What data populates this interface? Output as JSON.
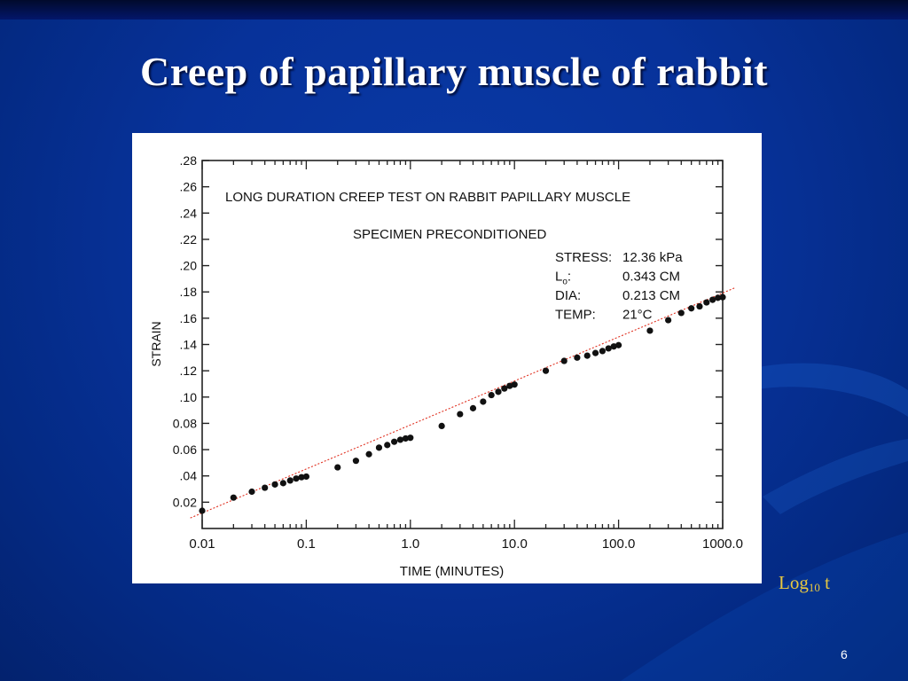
{
  "slide": {
    "title": "Creep of papillary muscle of rabbit",
    "log_label_base": "Log",
    "log_label_sub": "10",
    "log_label_var": "t",
    "page_number": "6"
  },
  "colors": {
    "background": "#07329a",
    "title_text": "#ffffff",
    "log_label": "#e8c840",
    "trend_line": "#e03020",
    "points": "#111111"
  },
  "chart_data": {
    "type": "scatter",
    "title": "LONG DURATION CREEP TEST ON RABBIT PAPILLARY MUSCLE",
    "subtitle": "SPECIMEN PRECONDITIONED",
    "xlabel": "TIME (MINUTES)",
    "ylabel": "STRAIN",
    "x_scale": "log10",
    "xlim": [
      0.01,
      1000
    ],
    "ylim": [
      0,
      0.28
    ],
    "x_ticks": [
      {
        "value": 0.01,
        "label": "0.01"
      },
      {
        "value": 0.1,
        "label": "0.1"
      },
      {
        "value": 1,
        "label": "1.0"
      },
      {
        "value": 10,
        "label": "10.0"
      },
      {
        "value": 100,
        "label": "100.0"
      },
      {
        "value": 1000,
        "label": "1000.0"
      }
    ],
    "y_ticks": [
      {
        "value": 0.02,
        "label": "0.02"
      },
      {
        "value": 0.04,
        "label": ".04"
      },
      {
        "value": 0.06,
        "label": "0.06"
      },
      {
        "value": 0.08,
        "label": "0.08"
      },
      {
        "value": 0.1,
        "label": ".10"
      },
      {
        "value": 0.12,
        "label": ".12"
      },
      {
        "value": 0.14,
        "label": ".14"
      },
      {
        "value": 0.16,
        "label": ".16"
      },
      {
        "value": 0.18,
        "label": ".18"
      },
      {
        "value": 0.2,
        "label": ".20"
      },
      {
        "value": 0.22,
        "label": ".22"
      },
      {
        "value": 0.24,
        "label": ".24"
      },
      {
        "value": 0.26,
        "label": ".26"
      },
      {
        "value": 0.28,
        "label": ".28"
      }
    ],
    "specimen_info": [
      {
        "key": "STRESS:",
        "value": "12.36 kPa"
      },
      {
        "key": "L",
        "key_sub": "o",
        "key_suffix": ":",
        "value": "0.343 CM"
      },
      {
        "key": "DIA:",
        "value": "0.213 CM"
      },
      {
        "key": "TEMP:",
        "value": "21°C"
      }
    ],
    "series": [
      {
        "points": [
          [
            0.01,
            0.0135
          ],
          [
            0.02,
            0.0235
          ],
          [
            0.03,
            0.028
          ],
          [
            0.04,
            0.031
          ],
          [
            0.05,
            0.0335
          ],
          [
            0.06,
            0.0345
          ],
          [
            0.07,
            0.0365
          ],
          [
            0.08,
            0.038
          ],
          [
            0.09,
            0.039
          ],
          [
            0.1,
            0.0395
          ],
          [
            0.2,
            0.0465
          ],
          [
            0.3,
            0.0515
          ],
          [
            0.4,
            0.0565
          ],
          [
            0.5,
            0.0615
          ],
          [
            0.6,
            0.0635
          ],
          [
            0.7,
            0.066
          ],
          [
            0.8,
            0.0675
          ],
          [
            0.9,
            0.0685
          ],
          [
            1.0,
            0.069
          ],
          [
            2.0,
            0.078
          ],
          [
            3.0,
            0.087
          ],
          [
            4.0,
            0.0915
          ],
          [
            5.0,
            0.0965
          ],
          [
            6.0,
            0.1015
          ],
          [
            7.0,
            0.104
          ],
          [
            8.0,
            0.1065
          ],
          [
            9.0,
            0.1085
          ],
          [
            10.0,
            0.1095
          ],
          [
            20.0,
            0.12
          ],
          [
            30.0,
            0.1275
          ],
          [
            40.0,
            0.13
          ],
          [
            50.0,
            0.1315
          ],
          [
            60.0,
            0.1335
          ],
          [
            70.0,
            0.135
          ],
          [
            80.0,
            0.137
          ],
          [
            90.0,
            0.1385
          ],
          [
            100.0,
            0.1395
          ],
          [
            200.0,
            0.1505
          ],
          [
            300.0,
            0.1585
          ],
          [
            400.0,
            0.164
          ],
          [
            500.0,
            0.1675
          ],
          [
            600.0,
            0.169
          ],
          [
            700.0,
            0.172
          ],
          [
            800.0,
            0.174
          ],
          [
            900.0,
            0.1755
          ],
          [
            1000.0,
            0.176
          ]
        ]
      }
    ],
    "trend_line": {
      "points": [
        [
          0.0077,
          0.008
        ],
        [
          1300,
          0.183
        ]
      ]
    }
  }
}
